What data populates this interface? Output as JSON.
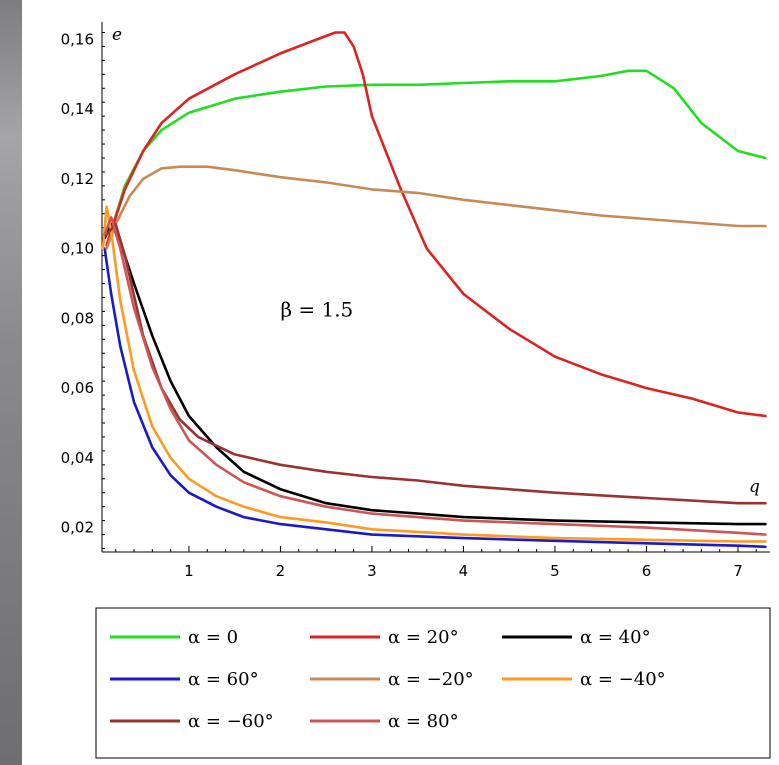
{
  "chart_data": {
    "type": "line",
    "title": "",
    "xlabel": "q",
    "ylabel": "e",
    "xlim": [
      0.05,
      7.35
    ],
    "ylim": [
      0.013,
      0.165
    ],
    "xticks": [
      "1",
      "2",
      "3",
      "4",
      "5",
      "6",
      "7"
    ],
    "yticks": [
      "0,02",
      "0,04",
      "0,06",
      "0,08",
      "0,10",
      "0,12",
      "0,14",
      "0,16"
    ],
    "annotation": "β = 1.5",
    "grid": false,
    "legend_position": "bottom",
    "series": [
      {
        "name": "α = 0",
        "color": "#22dd22",
        "x": [
          0.1,
          0.3,
          0.5,
          0.7,
          1.0,
          1.5,
          2.0,
          2.5,
          3.0,
          3.5,
          4.0,
          4.5,
          5.0,
          5.5,
          5.8,
          6.0,
          6.3,
          6.6,
          7.0,
          7.3
        ],
        "y": [
          0.101,
          0.118,
          0.128,
          0.134,
          0.139,
          0.143,
          0.145,
          0.1465,
          0.147,
          0.147,
          0.1475,
          0.148,
          0.148,
          0.1495,
          0.151,
          0.151,
          0.146,
          0.136,
          0.128,
          0.126
        ]
      },
      {
        "name": "α = 20°",
        "color": "#dd2222",
        "x": [
          0.1,
          0.3,
          0.5,
          0.7,
          1.0,
          1.5,
          2.0,
          2.4,
          2.6,
          2.7,
          2.8,
          2.9,
          3.0,
          3.3,
          3.6,
          4.0,
          4.5,
          5.0,
          5.5,
          6.0,
          6.5,
          7.0,
          7.3
        ],
        "y": [
          0.101,
          0.117,
          0.128,
          0.136,
          0.143,
          0.15,
          0.156,
          0.16,
          0.162,
          0.162,
          0.158,
          0.15,
          0.138,
          0.118,
          0.1,
          0.087,
          0.077,
          0.069,
          0.064,
          0.06,
          0.057,
          0.053,
          0.052
        ]
      },
      {
        "name": "α = 40°",
        "color": "#000000",
        "x": [
          0.08,
          0.15,
          0.25,
          0.4,
          0.6,
          0.8,
          1.0,
          1.3,
          1.6,
          2.0,
          2.5,
          3.0,
          3.5,
          4.0,
          5.0,
          6.0,
          7.0,
          7.3
        ],
        "y": [
          0.103,
          0.107,
          0.102,
          0.09,
          0.075,
          0.062,
          0.052,
          0.043,
          0.036,
          0.031,
          0.027,
          0.025,
          0.024,
          0.023,
          0.022,
          0.0215,
          0.021,
          0.021
        ]
      },
      {
        "name": "α = 60°",
        "color": "#1a1acc",
        "x": [
          0.08,
          0.15,
          0.25,
          0.4,
          0.6,
          0.8,
          1.0,
          1.3,
          1.6,
          2.0,
          2.5,
          3.0,
          4.0,
          5.0,
          6.0,
          7.0,
          7.3
        ],
        "y": [
          0.1,
          0.087,
          0.072,
          0.056,
          0.043,
          0.035,
          0.03,
          0.026,
          0.023,
          0.021,
          0.0195,
          0.018,
          0.017,
          0.0162,
          0.0155,
          0.0148,
          0.0145
        ]
      },
      {
        "name": "α = −20°",
        "color": "#c88a55",
        "x": [
          0.1,
          0.2,
          0.35,
          0.5,
          0.7,
          0.9,
          1.2,
          1.5,
          2.0,
          2.5,
          3.0,
          3.5,
          4.0,
          4.5,
          5.0,
          5.5,
          6.0,
          6.5,
          7.0,
          7.3
        ],
        "y": [
          0.1,
          0.107,
          0.115,
          0.12,
          0.123,
          0.1235,
          0.1235,
          0.1225,
          0.1205,
          0.119,
          0.117,
          0.116,
          0.114,
          0.1125,
          0.111,
          0.1095,
          0.1085,
          0.1075,
          0.1065,
          0.1065
        ]
      },
      {
        "name": "α = −40°",
        "color": "#ff9922",
        "x": [
          0.06,
          0.1,
          0.15,
          0.25,
          0.4,
          0.6,
          0.8,
          1.0,
          1.3,
          1.6,
          2.0,
          2.5,
          3.0,
          4.0,
          5.0,
          6.0,
          7.0,
          7.3
        ],
        "y": [
          0.1,
          0.112,
          0.105,
          0.085,
          0.065,
          0.049,
          0.04,
          0.034,
          0.029,
          0.026,
          0.023,
          0.0215,
          0.0195,
          0.018,
          0.017,
          0.0165,
          0.016,
          0.016
        ]
      },
      {
        "name": "α = −60°",
        "color": "#993333",
        "x": [
          0.1,
          0.2,
          0.3,
          0.5,
          0.7,
          0.9,
          1.1,
          1.5,
          2.0,
          2.5,
          3.0,
          3.5,
          4.0,
          5.0,
          6.0,
          7.0,
          7.3
        ],
        "y": [
          0.104,
          0.107,
          0.098,
          0.075,
          0.06,
          0.051,
          0.046,
          0.041,
          0.038,
          0.036,
          0.0345,
          0.0335,
          0.032,
          0.03,
          0.0285,
          0.027,
          0.027
        ]
      },
      {
        "name": "α = 80°",
        "color": "#cc5555",
        "x": [
          0.08,
          0.15,
          0.25,
          0.4,
          0.6,
          0.8,
          1.0,
          1.3,
          1.6,
          2.0,
          2.5,
          3.0,
          4.0,
          5.0,
          6.0,
          7.0,
          7.3
        ],
        "y": [
          0.104,
          0.109,
          0.1,
          0.083,
          0.066,
          0.054,
          0.045,
          0.038,
          0.033,
          0.029,
          0.026,
          0.024,
          0.022,
          0.021,
          0.02,
          0.0185,
          0.018
        ]
      }
    ]
  }
}
